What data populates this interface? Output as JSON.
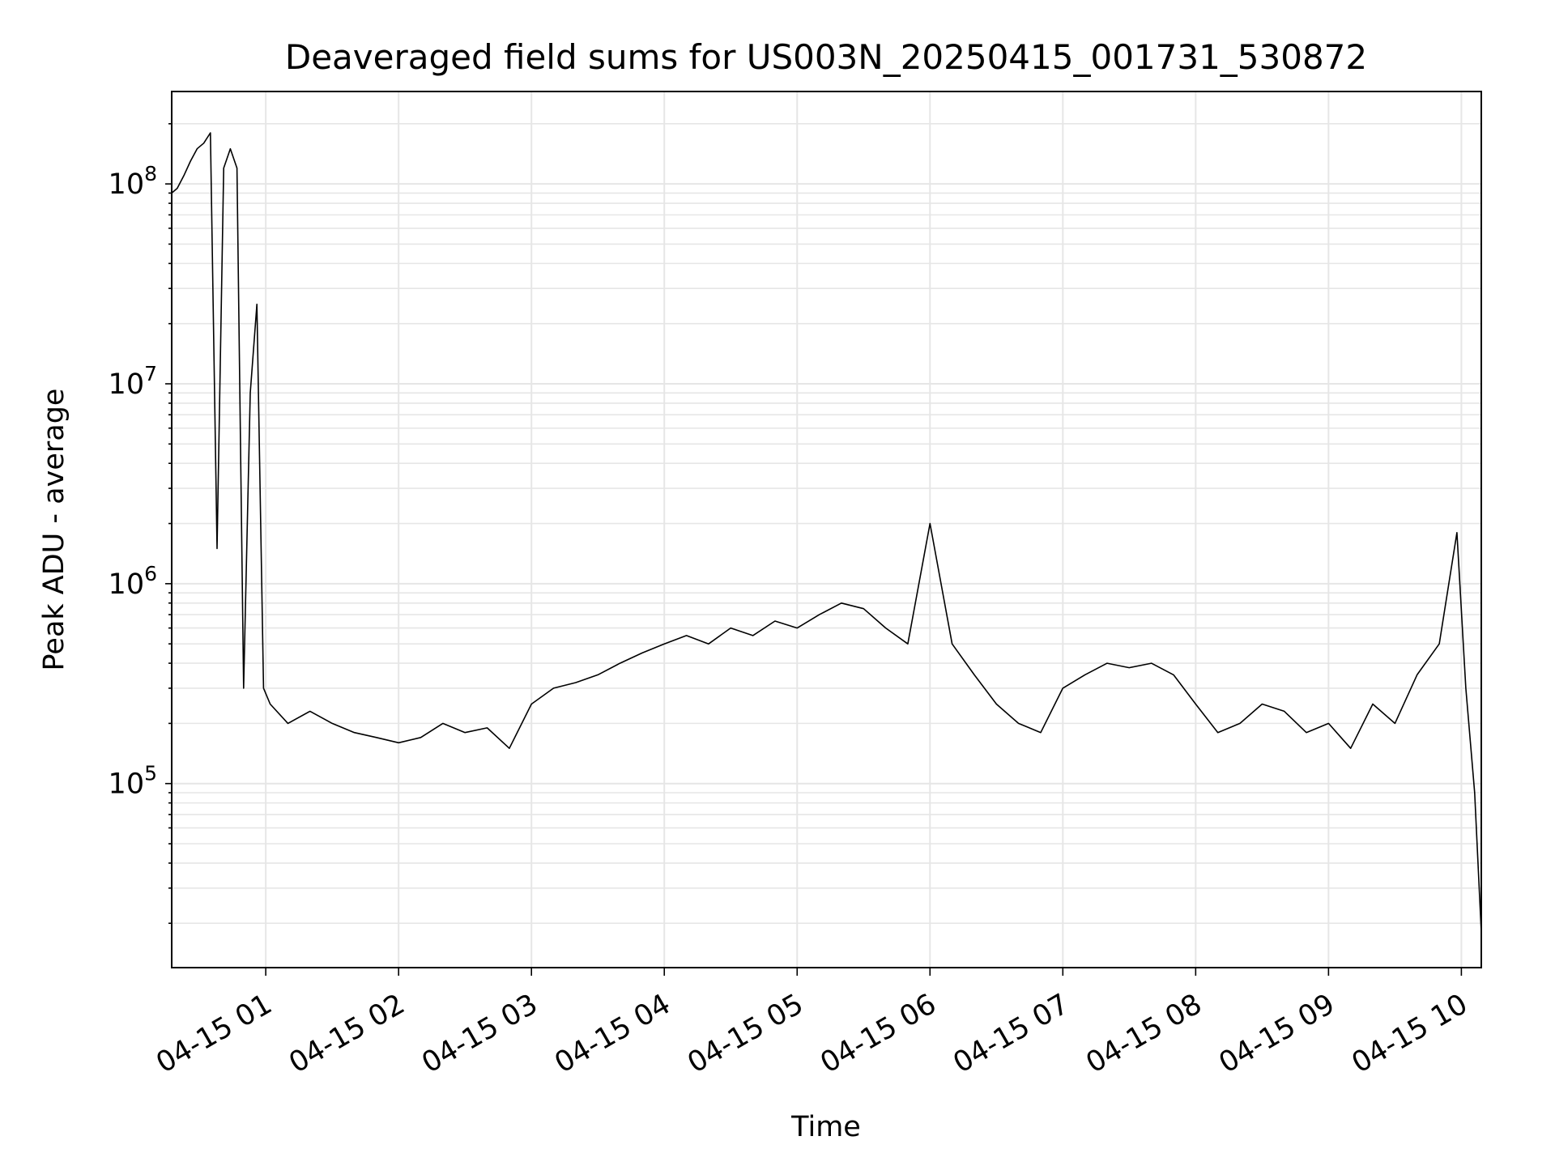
{
  "chart_data": {
    "type": "line",
    "title": "Deaveraged field sums for US003N_20250415_001731_530872",
    "xlabel": "Time",
    "ylabel": "Peak ADU - average",
    "xscale": "time",
    "yscale": "log",
    "xlim": [
      "2025-04-15 00:17:31",
      "2025-04-15 10:09:00"
    ],
    "ylim": [
      12000,
      290000000
    ],
    "grid": true,
    "legend": "none",
    "line_color": "#000000",
    "grid_color": "#e6e6e6",
    "x_ticks": [
      "04-15 01",
      "04-15 02",
      "04-15 03",
      "04-15 04",
      "04-15 05",
      "04-15 06",
      "04-15 07",
      "04-15 08",
      "04-15 09",
      "04-15 10"
    ],
    "x_tick_values": [
      "2025-04-15 01:00",
      "2025-04-15 02:00",
      "2025-04-15 03:00",
      "2025-04-15 04:00",
      "2025-04-15 05:00",
      "2025-04-15 06:00",
      "2025-04-15 07:00",
      "2025-04-15 08:00",
      "2025-04-15 09:00",
      "2025-04-15 10:00"
    ],
    "y_ticks": [
      {
        "value": 100000,
        "base": "10",
        "exp": "5"
      },
      {
        "value": 1000000,
        "base": "10",
        "exp": "6"
      },
      {
        "value": 10000000,
        "base": "10",
        "exp": "7"
      },
      {
        "value": 100000000,
        "base": "10",
        "exp": "8"
      }
    ],
    "series": [
      {
        "x": [
          "2025-04-15 00:17:31",
          "2025-04-15 00:20",
          "2025-04-15 00:23",
          "2025-04-15 00:26",
          "2025-04-15 00:29",
          "2025-04-15 00:32",
          "2025-04-15 00:35",
          "2025-04-15 00:38",
          "2025-04-15 00:41",
          "2025-04-15 00:44",
          "2025-04-15 00:47",
          "2025-04-15 00:50",
          "2025-04-15 00:53",
          "2025-04-15 00:56",
          "2025-04-15 00:59",
          "2025-04-15 01:02",
          "2025-04-15 01:10",
          "2025-04-15 01:20",
          "2025-04-15 01:30",
          "2025-04-15 01:40",
          "2025-04-15 01:50",
          "2025-04-15 02:00",
          "2025-04-15 02:10",
          "2025-04-15 02:20",
          "2025-04-15 02:30",
          "2025-04-15 02:40",
          "2025-04-15 02:50",
          "2025-04-15 03:00",
          "2025-04-15 03:10",
          "2025-04-15 03:20",
          "2025-04-15 03:30",
          "2025-04-15 03:40",
          "2025-04-15 03:50",
          "2025-04-15 04:00",
          "2025-04-15 04:10",
          "2025-04-15 04:20",
          "2025-04-15 04:30",
          "2025-04-15 04:40",
          "2025-04-15 04:50",
          "2025-04-15 05:00",
          "2025-04-15 05:10",
          "2025-04-15 05:20",
          "2025-04-15 05:30",
          "2025-04-15 05:40",
          "2025-04-15 05:50",
          "2025-04-15 06:00",
          "2025-04-15 06:10",
          "2025-04-15 06:20",
          "2025-04-15 06:30",
          "2025-04-15 06:40",
          "2025-04-15 06:50",
          "2025-04-15 07:00",
          "2025-04-15 07:10",
          "2025-04-15 07:20",
          "2025-04-15 07:30",
          "2025-04-15 07:40",
          "2025-04-15 07:50",
          "2025-04-15 08:00",
          "2025-04-15 08:10",
          "2025-04-15 08:20",
          "2025-04-15 08:30",
          "2025-04-15 08:40",
          "2025-04-15 08:50",
          "2025-04-15 09:00",
          "2025-04-15 09:10",
          "2025-04-15 09:20",
          "2025-04-15 09:30",
          "2025-04-15 09:40",
          "2025-04-15 09:50",
          "2025-04-15 09:58",
          "2025-04-15 10:02",
          "2025-04-15 10:06",
          "2025-04-15 10:09"
        ],
        "y": [
          90000000,
          95000000,
          110000000,
          130000000,
          150000000,
          160000000,
          180000000,
          1500000,
          120000000,
          150000000,
          120000000,
          300000,
          9000000,
          25000000,
          300000,
          250000,
          200000,
          230000,
          200000,
          180000,
          170000,
          160000,
          170000,
          200000,
          180000,
          190000,
          150000,
          250000,
          300000,
          320000,
          350000,
          400000,
          450000,
          500000,
          550000,
          500000,
          600000,
          550000,
          650000,
          600000,
          700000,
          800000,
          750000,
          600000,
          500000,
          2000000,
          500000,
          350000,
          250000,
          200000,
          180000,
          300000,
          350000,
          400000,
          380000,
          400000,
          350000,
          250000,
          180000,
          200000,
          250000,
          230000,
          180000,
          200000,
          150000,
          250000,
          200000,
          350000,
          500000,
          1800000,
          300000,
          90000,
          18000
        ]
      }
    ]
  }
}
